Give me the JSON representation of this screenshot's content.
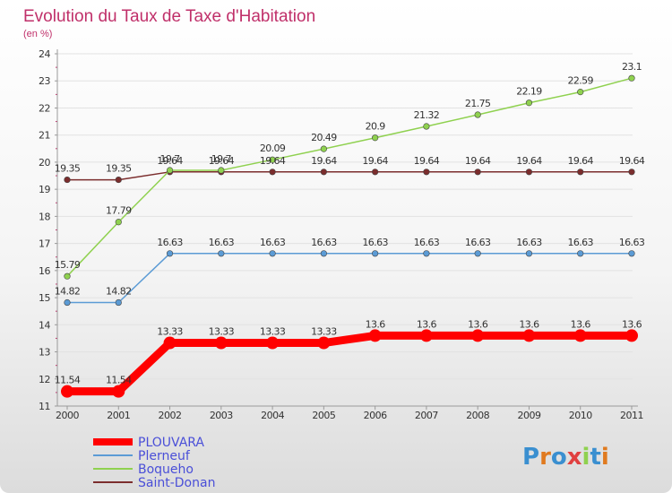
{
  "chart_data": {
    "type": "line",
    "title": "Evolution du Taux de Taxe d'Habitation",
    "subtitle": "(en %)",
    "x": [
      "2000",
      "2001",
      "2002",
      "2003",
      "2004",
      "2005",
      "2006",
      "2007",
      "2008",
      "2009",
      "2010",
      "2011"
    ],
    "yticks": [
      "11",
      "12",
      "13",
      "14",
      "15",
      "16",
      "17",
      "18",
      "19",
      "20",
      "21",
      "22",
      "23",
      "24"
    ],
    "ylim": [
      11,
      24
    ],
    "legend_position": "bottom-left",
    "brand": "Proxiti",
    "series": [
      {
        "name": "PLOUVARA",
        "color": "#ff0000",
        "emphasis": true,
        "values": [
          11.54,
          11.54,
          13.33,
          13.33,
          13.33,
          13.33,
          13.6,
          13.6,
          13.6,
          13.6,
          13.6,
          13.6
        ],
        "labels": [
          "11.54",
          "11.54",
          "13.33",
          "13.33",
          "13.33",
          "13.33",
          "13.6",
          "13.6",
          "13.6",
          "13.6",
          "13.6",
          "13.6"
        ]
      },
      {
        "name": "Plerneuf",
        "color": "#5b9bd5",
        "emphasis": false,
        "values": [
          14.82,
          14.82,
          16.63,
          16.63,
          16.63,
          16.63,
          16.63,
          16.63,
          16.63,
          16.63,
          16.63,
          16.63
        ],
        "labels": [
          "14.82",
          "14.82",
          "16.63",
          "16.63",
          "16.63",
          "16.63",
          "16.63",
          "16.63",
          "16.63",
          "16.63",
          "16.63",
          "16.63"
        ]
      },
      {
        "name": "Boqueho",
        "color": "#8fd14f",
        "emphasis": false,
        "values": [
          15.79,
          17.79,
          19.7,
          19.7,
          20.09,
          20.49,
          20.9,
          21.32,
          21.75,
          22.19,
          22.59,
          23.1
        ],
        "labels": [
          "15.79",
          "17.79",
          "19.7",
          "19.7",
          "20.09",
          "20.49",
          "20.9",
          "21.32",
          "21.75",
          "22.19",
          "22.59",
          "23.1"
        ]
      },
      {
        "name": "Saint-Donan",
        "color": "#7b2d2d",
        "emphasis": false,
        "values": [
          19.35,
          19.35,
          19.64,
          19.64,
          19.64,
          19.64,
          19.64,
          19.64,
          19.64,
          19.64,
          19.64,
          19.64
        ],
        "labels": [
          "19.35",
          "19.35",
          "19.64",
          "19.64",
          "19.64",
          "19.64",
          "19.64",
          "19.64",
          "19.64",
          "19.64",
          "19.64",
          "19.64"
        ]
      }
    ]
  }
}
